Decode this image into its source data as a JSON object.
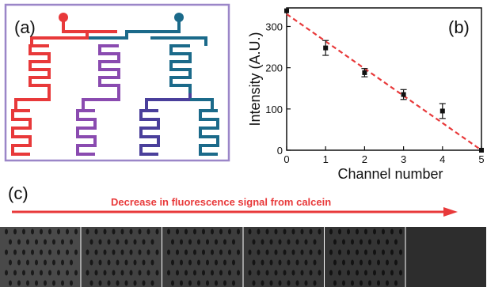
{
  "panels": {
    "a": {
      "label": "(a)"
    },
    "b": {
      "label": "(b)"
    },
    "c": {
      "label": "(c)",
      "arrow_caption": "Decrease in fluorescence signal from calcein"
    }
  },
  "colors": {
    "red": "#e8393a",
    "blue": "#1b6a8a",
    "purple": "#8a4bb0",
    "dark_purple": "#4a3f9b",
    "frame": "#9b86c8",
    "fit_line": "#e8393a",
    "arrow": "#e8393a"
  },
  "chart_data": {
    "type": "scatter",
    "xlabel": "Channel number",
    "ylabel": "Intensity (A.U.)",
    "xlim": [
      0,
      5
    ],
    "ylim": [
      0,
      345
    ],
    "xticks": [
      0,
      1,
      2,
      3,
      4,
      5
    ],
    "yticks": [
      0,
      100,
      200,
      300
    ],
    "x": [
      0,
      1,
      2,
      3,
      4,
      5
    ],
    "y": [
      338,
      248,
      188,
      135,
      95,
      0
    ],
    "yerr": [
      0,
      18,
      10,
      12,
      18,
      0
    ],
    "fit": {
      "x": [
        0,
        5
      ],
      "y": [
        330,
        0
      ],
      "style": "dashed"
    }
  },
  "micrographs": {
    "count": 6,
    "brightness": [
      0.55,
      0.42,
      0.33,
      0.26,
      0.2,
      0.09
    ]
  }
}
